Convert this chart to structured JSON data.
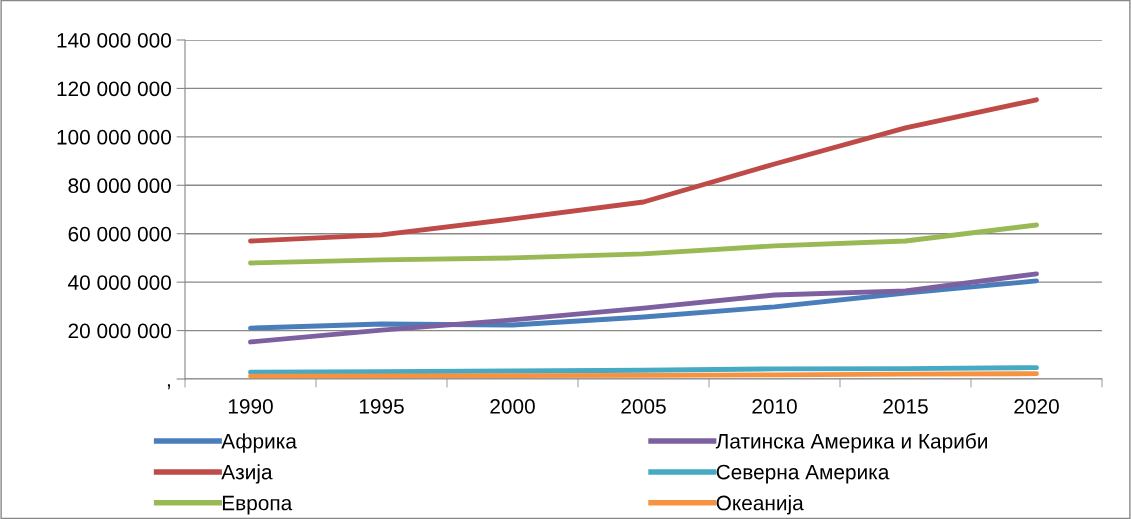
{
  "chart_data": {
    "type": "line",
    "categories": [
      "1990",
      "1995",
      "2000",
      "2005",
      "2010",
      "2015",
      "2020"
    ],
    "series": [
      {
        "name": "Африка",
        "color": "#4a7ebb",
        "values": [
          21000000,
          22700000,
          22300000,
          25600000,
          29800000,
          35500000,
          40500000
        ]
      },
      {
        "name": "Азија",
        "color": "#be4b48",
        "values": [
          57000000,
          59500000,
          66100000,
          73100000,
          88800000,
          103700000,
          115300000
        ]
      },
      {
        "name": "Европа",
        "color": "#98b954",
        "values": [
          47900000,
          49200000,
          50000000,
          51700000,
          55000000,
          57000000,
          63600000
        ]
      },
      {
        "name": "Латинска Америка и Кариби",
        "color": "#7d60a0",
        "values": [
          15300000,
          20200000,
          24400000,
          29300000,
          34700000,
          36400000,
          43400000
        ]
      },
      {
        "name": "Северна Америка",
        "color": "#46aac5",
        "values": [
          2800000,
          3000000,
          3300000,
          3600000,
          4200000,
          4300000,
          4700000
        ]
      },
      {
        "name": "Океанија",
        "color": "#f69240",
        "values": [
          1200000,
          1300000,
          1400000,
          1500000,
          1700000,
          2000000,
          2200000
        ]
      }
    ],
    "ylim": [
      0,
      140000000
    ],
    "yticks": [
      {
        "value": 0,
        "label": ","
      },
      {
        "value": 20000000,
        "label": "20 000 000"
      },
      {
        "value": 40000000,
        "label": "40 000 000"
      },
      {
        "value": 60000000,
        "label": "60 000 000"
      },
      {
        "value": 80000000,
        "label": "80 000 000"
      },
      {
        "value": 100000000,
        "label": "100 000 000"
      },
      {
        "value": 120000000,
        "label": "120 000 000"
      },
      {
        "value": 140000000,
        "label": "140 000 000"
      }
    ],
    "grid": "y",
    "legend": "bottom",
    "marker": "none",
    "line_style": "solid"
  }
}
